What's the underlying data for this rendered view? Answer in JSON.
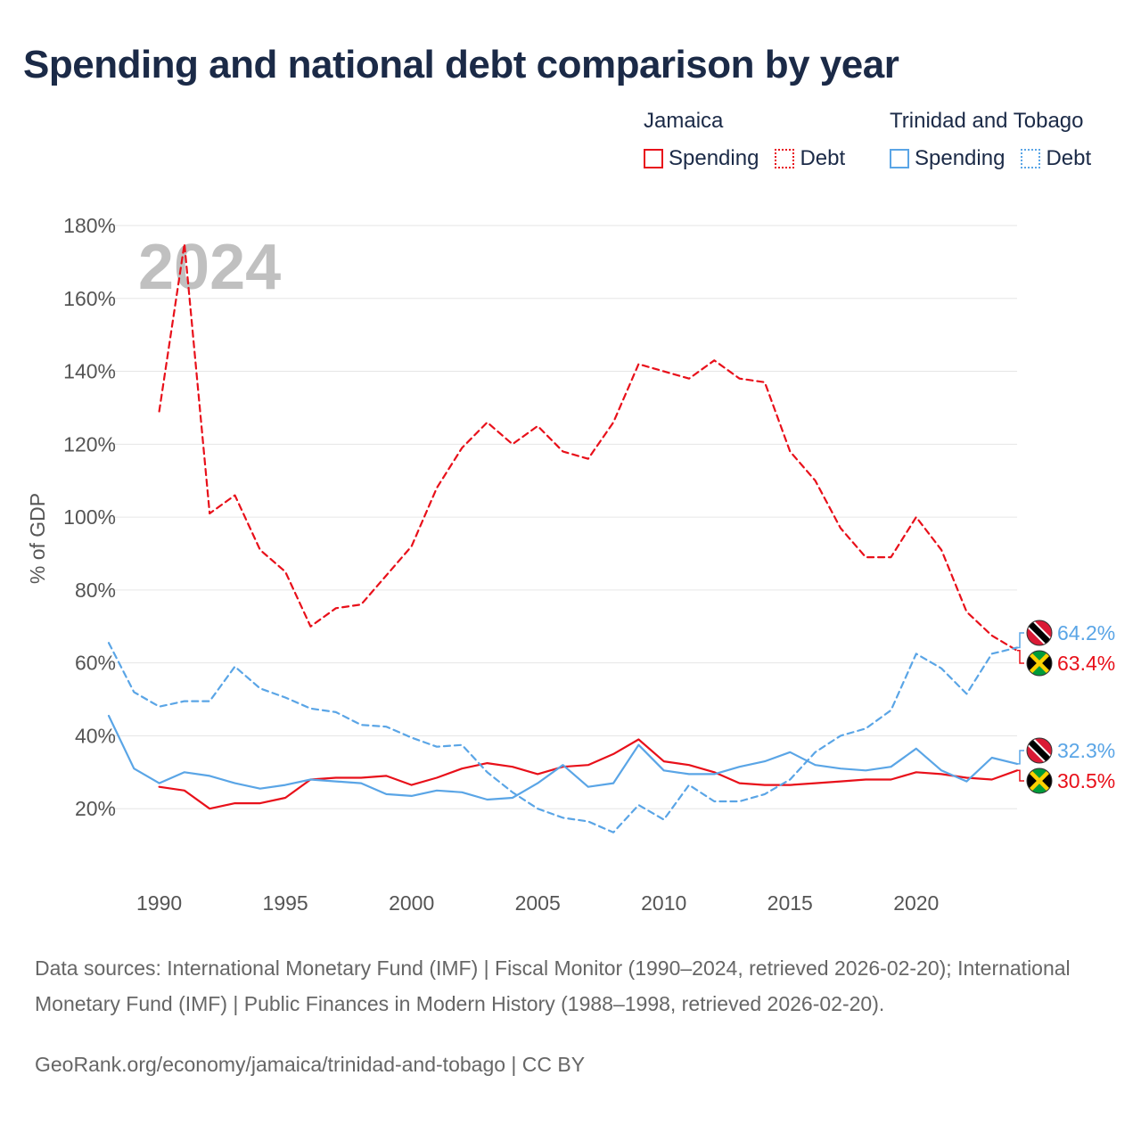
{
  "title": "Spending and national debt comparison by year",
  "colors": {
    "jamaica": "#e8101a",
    "trinidad": "#5aa5e6",
    "grid": "#e6e6e6",
    "axis_text": "#555555",
    "year_text": "#c0c0c0"
  },
  "legend": [
    {
      "group": "Jamaica",
      "items": [
        {
          "label": "Spending",
          "style": "solid",
          "color": "#e8101a"
        },
        {
          "label": "Debt",
          "style": "dotted",
          "color": "#e8101a"
        }
      ]
    },
    {
      "group": "Trinidad and Tobago",
      "items": [
        {
          "label": "Spending",
          "style": "solid",
          "color": "#5aa5e6"
        },
        {
          "label": "Debt",
          "style": "dotted",
          "color": "#5aa5e6"
        }
      ]
    }
  ],
  "chart_data": {
    "type": "line",
    "title": "Spending and national debt comparison by year",
    "year_watermark": "2024",
    "ylabel": "% of GDP",
    "xlabel": "",
    "ylim": [
      0,
      180
    ],
    "xlim": [
      1988,
      2024
    ],
    "yticks": [
      20,
      40,
      60,
      80,
      100,
      120,
      140,
      160,
      180
    ],
    "ytick_labels": [
      "20%",
      "40%",
      "60%",
      "80%",
      "100%",
      "120%",
      "140%",
      "160%",
      "180%"
    ],
    "xticks": [
      1990,
      1995,
      2000,
      2005,
      2010,
      2015,
      2020
    ],
    "xtick_labels": [
      "1990",
      "1995",
      "2000",
      "2005",
      "2010",
      "2015",
      "2020"
    ],
    "series": [
      {
        "name": "Jamaica Debt",
        "country": "jamaica",
        "style": "dashed",
        "color": "#e8101a",
        "start": 1990,
        "values": [
          129,
          175,
          101,
          106,
          91,
          85,
          70,
          75,
          76,
          84,
          92,
          108,
          119,
          126,
          120,
          125,
          118,
          116,
          126,
          142,
          140,
          138,
          143,
          138,
          137,
          118,
          110,
          97,
          89,
          89,
          100,
          91,
          74,
          67.5,
          63.4
        ]
      },
      {
        "name": "Jamaica Spending",
        "country": "jamaica",
        "style": "solid",
        "color": "#e8101a",
        "start": 1990,
        "values": [
          26,
          25,
          20,
          21.5,
          21.5,
          23,
          28,
          28.5,
          28.5,
          29,
          26.5,
          28.5,
          31,
          32.5,
          31.5,
          29.5,
          31.5,
          32,
          35,
          39,
          33,
          32,
          30,
          27,
          26.5,
          26.5,
          27,
          27.5,
          28,
          28,
          30,
          29.5,
          28.5,
          28,
          30.5
        ]
      },
      {
        "name": "Trinidad and Tobago Debt",
        "country": "trinidad",
        "style": "dashed",
        "color": "#5aa5e6",
        "start": 1988,
        "values": [
          65.5,
          52,
          48,
          49.5,
          49.5,
          59,
          53,
          50.5,
          47.5,
          46.5,
          43,
          42.5,
          39.5,
          37,
          37.5,
          30,
          24.5,
          20,
          17.5,
          16.5,
          13.5,
          21,
          17,
          26.5,
          22,
          22,
          24,
          28,
          35.5,
          40,
          42,
          47,
          62.5,
          58.5,
          51.5,
          62.5,
          64.2
        ]
      },
      {
        "name": "Trinidad and Tobago Spending",
        "country": "trinidad",
        "style": "solid",
        "color": "#5aa5e6",
        "start": 1988,
        "values": [
          45.5,
          31,
          27,
          30,
          29,
          27,
          25.5,
          26.5,
          28,
          27.5,
          27,
          24,
          23.5,
          25,
          24.5,
          22.5,
          23,
          27,
          32,
          26,
          27,
          37.5,
          30.5,
          29.5,
          29.5,
          31.5,
          33,
          35.5,
          32,
          31,
          30.5,
          31.5,
          36.5,
          30.5,
          27.5,
          34,
          32.3
        ]
      }
    ],
    "end_labels": [
      {
        "text": "64.2%",
        "country": "trinidad",
        "value": 64.2,
        "flag": "trinidad-flag"
      },
      {
        "text": "63.4%",
        "country": "jamaica",
        "value": 63.4,
        "flag": "jamaica-flag"
      },
      {
        "text": "32.3%",
        "country": "trinidad",
        "value": 32.3,
        "flag": "trinidad-flag"
      },
      {
        "text": "30.5%",
        "country": "jamaica",
        "value": 30.5,
        "flag": "jamaica-flag"
      }
    ]
  },
  "footer": {
    "sources": "Data sources: International Monetary Fund (IMF) | Fiscal Monitor (1990–2024, retrieved 2026-02-20); International Monetary Fund (IMF) | Public Finances in Modern History (1988–1998, retrieved 2026-02-20).",
    "credit": "GeoRank.org/economy/jamaica/trinidad-and-tobago | CC BY"
  }
}
